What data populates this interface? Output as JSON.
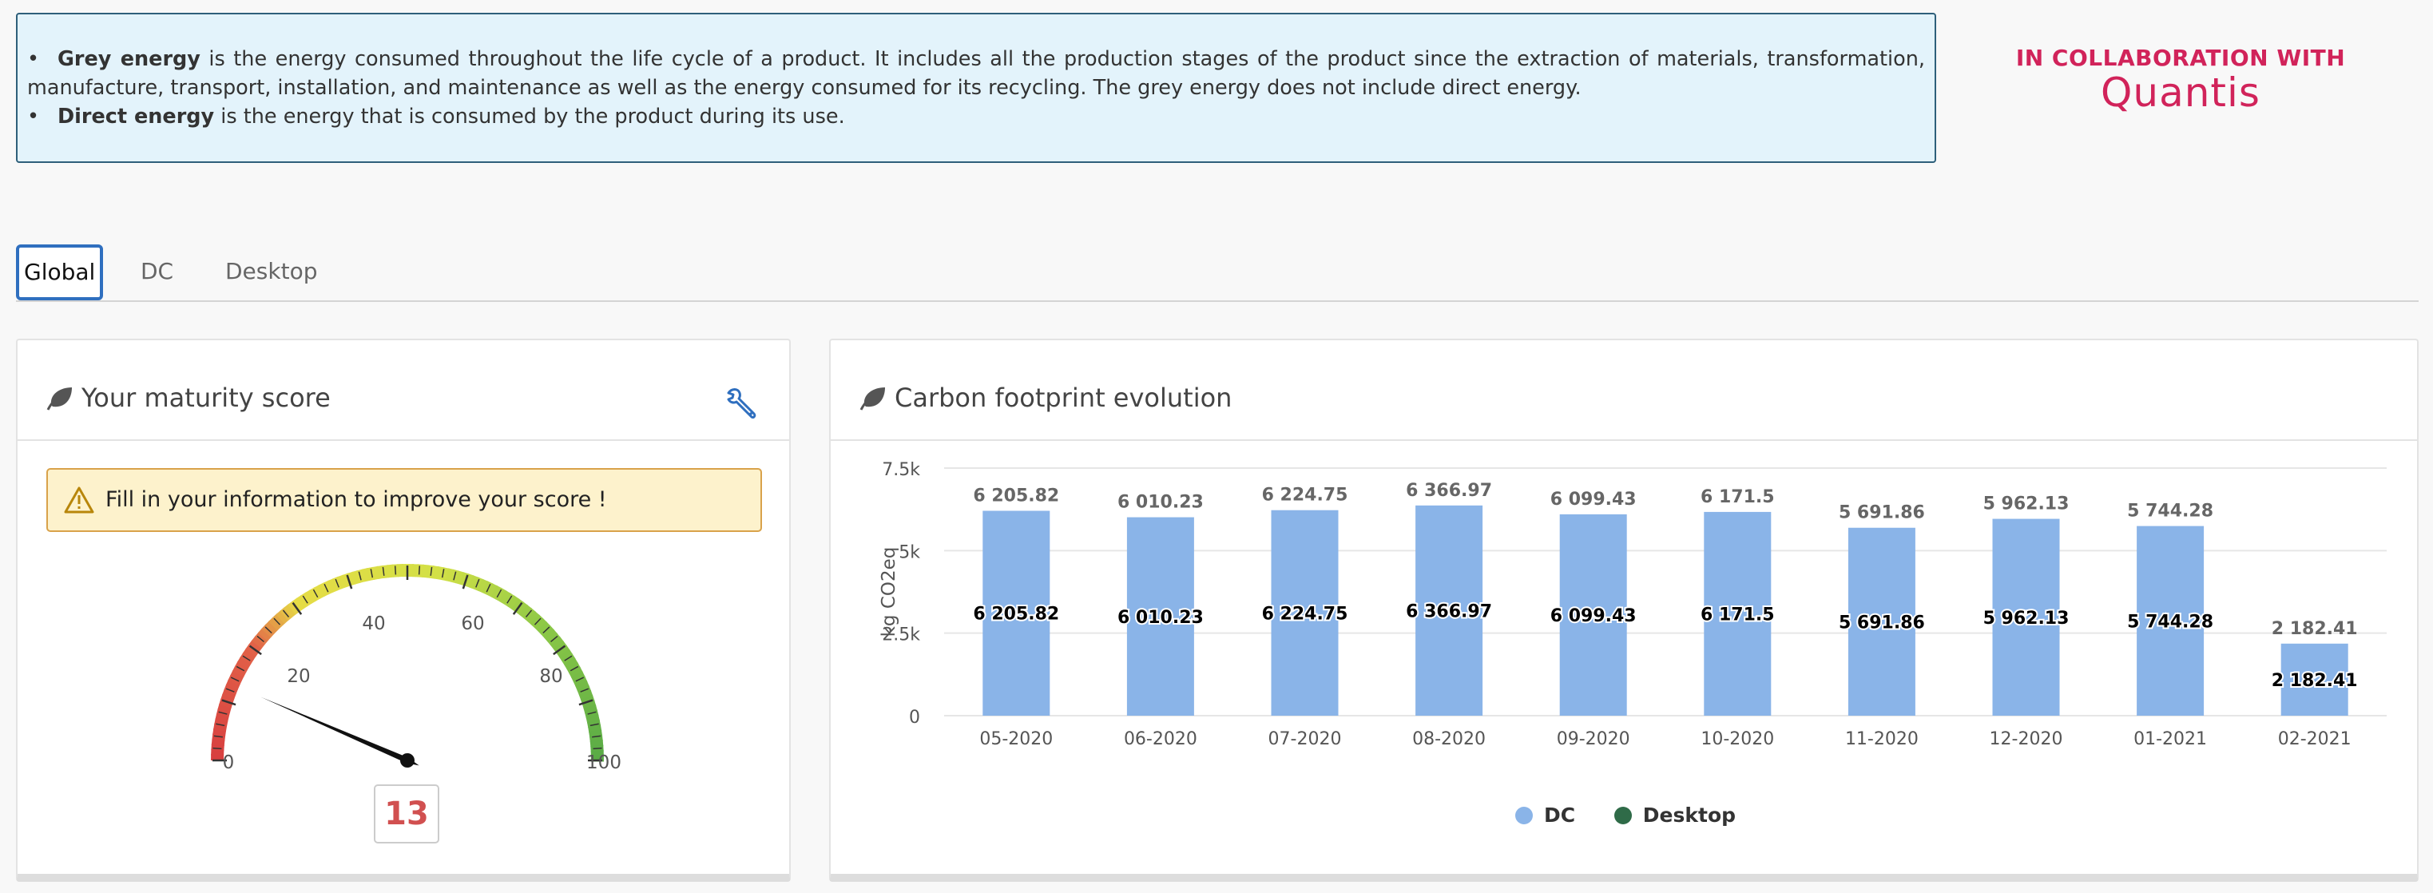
{
  "info": {
    "items": [
      {
        "bullet": "•",
        "term": "Grey energy",
        "text": " is the energy consumed throughout the life cycle of a product. It includes all the production stages of the product since the extraction of materials, transformation, manufacture, transport, installation, and maintenance as well as the energy consumed for its recycling. The grey energy does not include direct energy."
      },
      {
        "bullet": "•",
        "term": "Direct energy",
        "text": " is the energy that is consumed by the product during its use."
      }
    ]
  },
  "collab": {
    "label": "IN COLLABORATION WITH",
    "logo_text": "Quantis"
  },
  "tabs": [
    {
      "label": "Global",
      "active": true
    },
    {
      "label": "DC",
      "active": false
    },
    {
      "label": "Desktop",
      "active": false
    }
  ],
  "maturity": {
    "title": "Your maturity score",
    "alert": "Fill in your information to improve your score !",
    "score": "13",
    "score_value": 13,
    "gauge_min": 0,
    "gauge_max": 100,
    "gauge_ticks": [
      "0",
      "20",
      "40",
      "60",
      "80",
      "100"
    ]
  },
  "carbon": {
    "title": "Carbon footprint evolution"
  },
  "chart_data": {
    "type": "bar",
    "title": "Carbon footprint evolution",
    "xlabel": "",
    "ylabel": "kg CO2eq",
    "ylim": [
      0,
      7500
    ],
    "yticks": [
      0,
      2500,
      5000,
      7500
    ],
    "ytick_labels": [
      "0",
      "2.5k",
      "5k",
      "7.5k"
    ],
    "categories": [
      "05-2020",
      "06-2020",
      "07-2020",
      "08-2020",
      "09-2020",
      "10-2020",
      "11-2020",
      "12-2020",
      "01-2021",
      "02-2021"
    ],
    "series": [
      {
        "name": "DC",
        "color": "#8ab4e8",
        "values": [
          6205.82,
          6010.23,
          6224.75,
          6366.97,
          6099.43,
          6171.5,
          5691.86,
          5962.13,
          5744.28,
          2182.41
        ]
      },
      {
        "name": "Desktop",
        "color": "#2f6b48",
        "values": [
          0,
          0,
          0,
          0,
          0,
          0,
          0,
          0,
          0,
          0
        ]
      }
    ],
    "total_labels": [
      "6 205.82",
      "6 010.23",
      "6 224.75",
      "6 366.97",
      "6 099.43",
      "6 171.5",
      "5 691.86",
      "5 962.13",
      "5 744.28",
      "2 182.41"
    ],
    "data_labels": [
      "6 205.82",
      "6 010.23",
      "6 224.75",
      "6 366.97",
      "6 099.43",
      "6 171.5",
      "5 691.86",
      "5 962.13",
      "5 744.28",
      "2 182.41"
    ],
    "legend": "bottom-center"
  }
}
